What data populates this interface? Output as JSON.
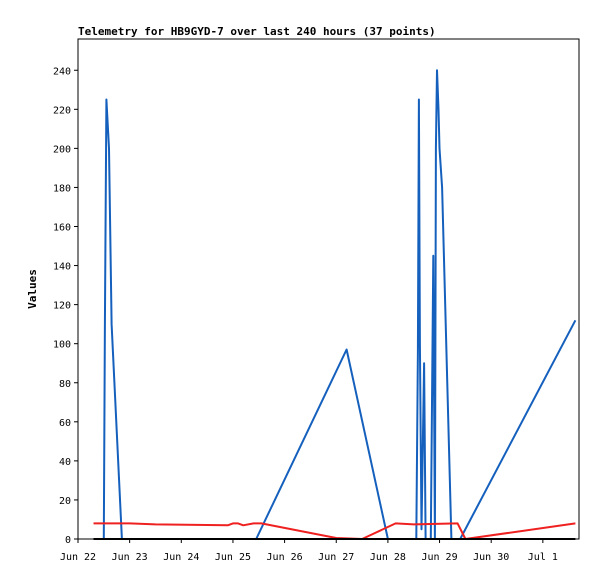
{
  "chart_data": {
    "type": "line",
    "title": "Telemetry for HB9GYD-7 over last 240 hours (37 points)",
    "xlabel": "",
    "ylabel": "Values",
    "ylim": [
      0,
      256
    ],
    "y_ticks": [
      0,
      20,
      40,
      60,
      80,
      100,
      120,
      140,
      160,
      180,
      200,
      220,
      240
    ],
    "x_range": [
      0,
      9.7
    ],
    "x_ticks": [
      {
        "label": "Jun 22",
        "day": 0
      },
      {
        "label": "Jun 23",
        "day": 1
      },
      {
        "label": "Jun 24",
        "day": 2
      },
      {
        "label": "Jun 25",
        "day": 3
      },
      {
        "label": "Jun 26",
        "day": 4
      },
      {
        "label": "Jun 27",
        "day": 5
      },
      {
        "label": "Jun 28",
        "day": 6
      },
      {
        "label": "Jun 29",
        "day": 7
      },
      {
        "label": "Jun 30",
        "day": 8
      },
      {
        "label": "Jul 1",
        "day": 9
      }
    ],
    "x_unit_note": "day 0 = Jun 22",
    "grid": false,
    "series": [
      {
        "color": "#1560bd",
        "points": [
          [
            0.5,
            0
          ],
          [
            0.52,
            110
          ],
          [
            0.55,
            225
          ],
          [
            0.6,
            200
          ],
          [
            0.65,
            110
          ],
          [
            0.85,
            0
          ],
          [
            3.45,
            0
          ],
          [
            5.2,
            97
          ],
          [
            6.0,
            0
          ],
          [
            6.55,
            0
          ],
          [
            6.58,
            96
          ],
          [
            6.6,
            225
          ],
          [
            6.62,
            100
          ],
          [
            6.65,
            5
          ],
          [
            6.7,
            90
          ],
          [
            6.73,
            0
          ],
          [
            6.83,
            0
          ],
          [
            6.88,
            145
          ],
          [
            6.91,
            0
          ],
          [
            6.93,
            200
          ],
          [
            6.95,
            240
          ],
          [
            6.98,
            220
          ],
          [
            7.0,
            200
          ],
          [
            7.05,
            180
          ],
          [
            7.23,
            0
          ],
          [
            7.4,
            0
          ],
          [
            9.63,
            112
          ]
        ]
      },
      {
        "color": "#ef2020",
        "points": [
          [
            0.3,
            8
          ],
          [
            1.0,
            8
          ],
          [
            1.5,
            7.5
          ],
          [
            2.9,
            7
          ],
          [
            3.0,
            8
          ],
          [
            3.1,
            8
          ],
          [
            3.2,
            7
          ],
          [
            3.4,
            8
          ],
          [
            3.45,
            8
          ],
          [
            3.55,
            8
          ],
          [
            5.0,
            0.5
          ],
          [
            5.5,
            0
          ],
          [
            6.15,
            8
          ],
          [
            6.5,
            7.5
          ],
          [
            7.35,
            8
          ],
          [
            7.5,
            0
          ],
          [
            9.63,
            8
          ]
        ]
      },
      {
        "color": "#000000",
        "points": [
          [
            0.3,
            0
          ],
          [
            9.63,
            0
          ]
        ]
      }
    ]
  }
}
